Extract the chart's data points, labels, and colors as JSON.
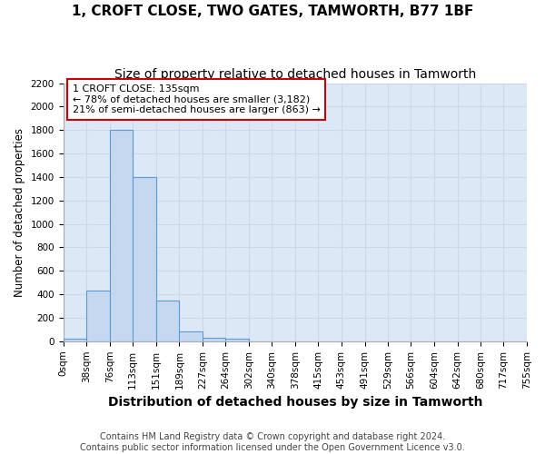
{
  "title": "1, CROFT CLOSE, TWO GATES, TAMWORTH, B77 1BF",
  "subtitle": "Size of property relative to detached houses in Tamworth",
  "xlabel": "Distribution of detached houses by size in Tamworth",
  "ylabel": "Number of detached properties",
  "bin_edges": [
    0,
    38,
    76,
    113,
    151,
    189,
    227,
    264,
    302,
    340,
    378,
    415,
    453,
    491,
    529,
    566,
    604,
    642,
    680,
    717,
    755
  ],
  "bin_counts": [
    20,
    430,
    1800,
    1400,
    350,
    80,
    30,
    20,
    0,
    0,
    0,
    0,
    0,
    0,
    0,
    0,
    0,
    0,
    0,
    0
  ],
  "bar_color": "#c5d8f0",
  "bar_edge_color": "#5b9bd5",
  "annotation_text_line1": "1 CROFT CLOSE: 135sqm",
  "annotation_text_line2": "← 78% of detached houses are smaller (3,182)",
  "annotation_text_line3": "21% of semi-detached houses are larger (863) →",
  "annotation_box_color": "#ffffff",
  "annotation_box_edge": "#cc0000",
  "ylim": [
    0,
    2200
  ],
  "yticks": [
    0,
    200,
    400,
    600,
    800,
    1000,
    1200,
    1400,
    1600,
    1800,
    2000,
    2200
  ],
  "grid_color": "#ccd8e8",
  "plot_bg_color": "#dce8f5",
  "fig_bg_color": "#ffffff",
  "footer_line1": "Contains HM Land Registry data © Crown copyright and database right 2024.",
  "footer_line2": "Contains public sector information licensed under the Open Government Licence v3.0.",
  "title_fontsize": 11,
  "subtitle_fontsize": 10,
  "xlabel_fontsize": 10,
  "ylabel_fontsize": 8.5,
  "tick_fontsize": 7.5,
  "footer_fontsize": 7
}
